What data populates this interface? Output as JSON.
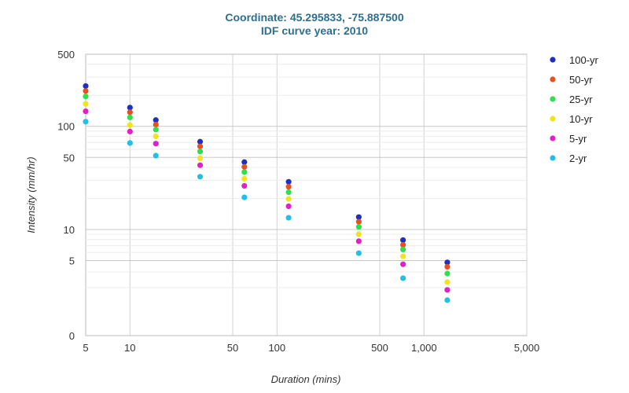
{
  "chart_data": {
    "type": "scatter",
    "title": "Coordinate: 45.295833, -75.887500",
    "subtitle": "IDF curve year: 2010",
    "xlabel": "Duration (mins)",
    "ylabel": "Intensity (mm/hr)",
    "x_scale": "log",
    "y_scale": "log",
    "xlim": [
      5,
      5000
    ],
    "ylim_top": 500,
    "x_ticks": [
      5,
      10,
      50,
      100,
      500,
      1000,
      5000
    ],
    "x_tick_labels": [
      "5",
      "10",
      "50",
      "100",
      "500",
      "1,000",
      "5,000"
    ],
    "y_ticks": [
      500,
      100,
      50,
      10,
      5,
      0
    ],
    "y_tick_labels": [
      "500",
      "100",
      "50",
      "10",
      "5",
      "0"
    ],
    "grid": true,
    "legend_position": "right",
    "x": [
      5,
      10,
      15,
      30,
      60,
      120,
      360,
      720,
      1440
    ],
    "series": [
      {
        "name": "100-yr",
        "color": "#1f2fbf",
        "values": [
          246,
          152,
          115,
          71,
          45,
          29,
          13.2,
          7.9,
          4.8
        ]
      },
      {
        "name": "50-yr",
        "color": "#e8501c",
        "values": [
          220,
          137,
          104,
          64,
          40.5,
          26,
          11.9,
          7.1,
          4.35
        ]
      },
      {
        "name": "25-yr",
        "color": "#2ee04e",
        "values": [
          195,
          122,
          93,
          57,
          36,
          23,
          10.6,
          6.4,
          3.9
        ]
      },
      {
        "name": "10-yr",
        "color": "#f2e31b",
        "values": [
          165,
          103,
          80,
          49,
          31,
          19.8,
          9,
          5.5,
          3.35
        ]
      },
      {
        "name": "5-yr",
        "color": "#e020c8",
        "values": [
          140,
          89,
          68,
          42,
          26.5,
          16.8,
          7.7,
          4.6,
          2.85
        ]
      },
      {
        "name": "2-yr",
        "color": "#22c0e8",
        "values": [
          111,
          69,
          52,
          32.5,
          20.5,
          13,
          5.9,
          3.6,
          2.2
        ]
      }
    ]
  }
}
